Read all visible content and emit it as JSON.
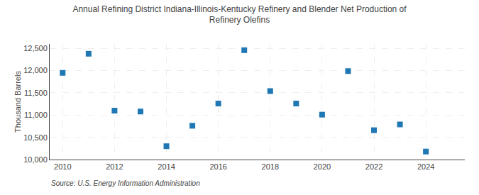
{
  "chart_data": {
    "type": "scatter",
    "title": "Annual Refining District Indiana-Illinois-Kentucky Refinery and Blender Net Production of\nRefinery Olefins",
    "ylabel": "Thousand Barrels",
    "source": "Source: U.S. Energy Information Administration",
    "x": [
      2010,
      2011,
      2012,
      2013,
      2014,
      2015,
      2016,
      2017,
      2018,
      2019,
      2020,
      2021,
      2022,
      2023,
      2024
    ],
    "values": [
      11950,
      12380,
      11100,
      11080,
      10300,
      10760,
      11260,
      12460,
      11540,
      11260,
      11010,
      11990,
      10660,
      10790,
      10180
    ],
    "marker": "square",
    "xlim": [
      2009.5,
      2025.5
    ],
    "xticks": [
      2010,
      2012,
      2014,
      2016,
      2018,
      2020,
      2022,
      2024
    ],
    "ylim": [
      10000,
      12600
    ],
    "yticks": [
      {
        "value": 10000,
        "label": "10,000"
      },
      {
        "value": 10500,
        "label": "10,500"
      },
      {
        "value": 11000,
        "label": "11,000"
      },
      {
        "value": 11500,
        "label": "11,500"
      },
      {
        "value": 12000,
        "label": "12,000"
      },
      {
        "value": 12500,
        "label": "12,500"
      }
    ],
    "grid": true
  }
}
